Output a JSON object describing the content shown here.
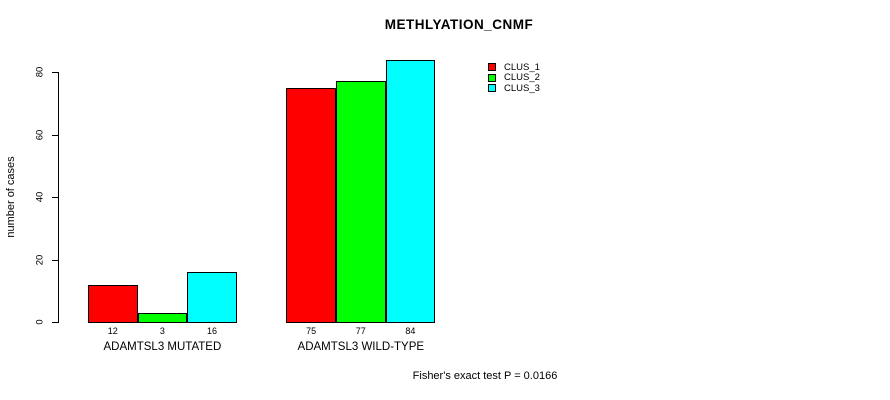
{
  "chart_data": {
    "type": "bar",
    "title": "METHLYATION_CNMF",
    "xlabel": "",
    "ylabel": "number of cases",
    "categories": [
      "ADAMTSL3 MUTATED",
      "ADAMTSL3 WILD-TYPE"
    ],
    "series": [
      {
        "name": "CLUS_1",
        "color": "#FF0000",
        "values": [
          12,
          75
        ]
      },
      {
        "name": "CLUS_2",
        "color": "#00FF00",
        "values": [
          3,
          77
        ]
      },
      {
        "name": "CLUS_3",
        "color": "#00FFFF",
        "values": [
          16,
          84
        ]
      }
    ],
    "bar_value_labels": [
      [
        12,
        3,
        16
      ],
      [
        75,
        77,
        84
      ]
    ],
    "yticks": [
      0,
      20,
      40,
      60,
      80
    ],
    "ylim": [
      0,
      84
    ],
    "grid": false,
    "legend_position": "top-right",
    "background_color": "#FFFFFF",
    "axis_color": "#000000"
  },
  "annotation": {
    "footer": "Fisher's exact test P = 0.0166"
  }
}
